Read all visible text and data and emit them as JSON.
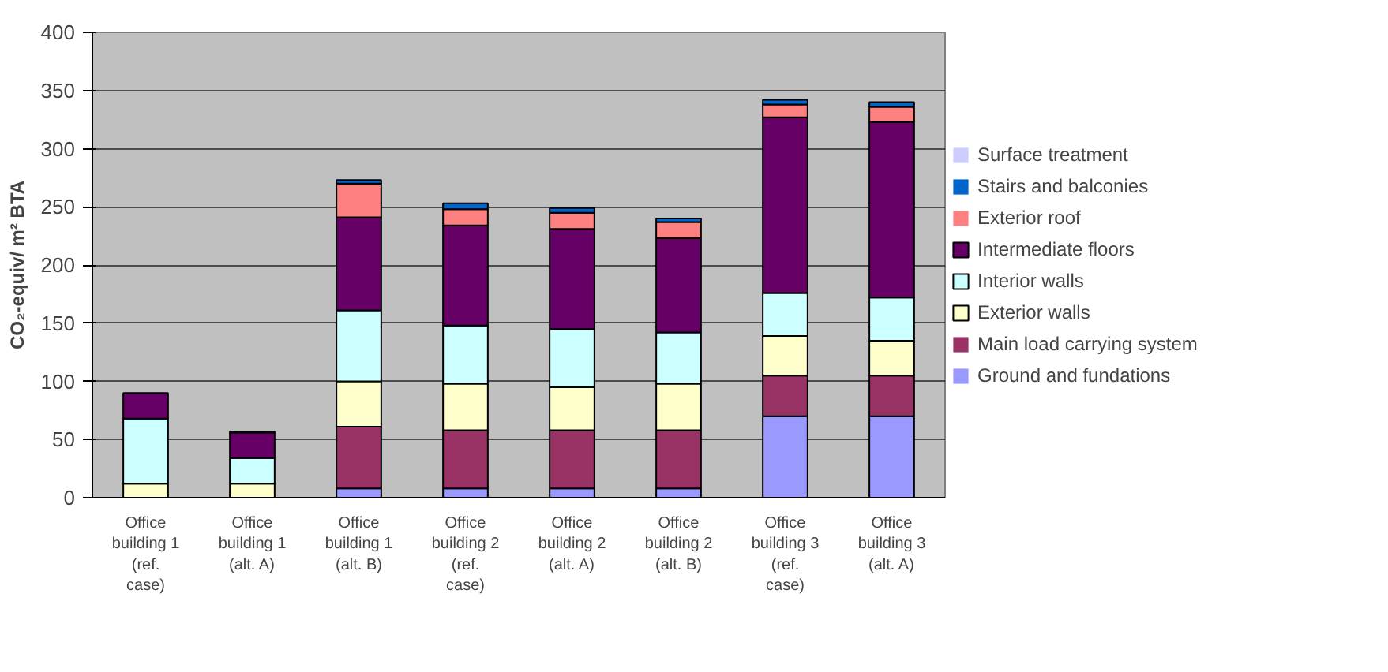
{
  "chart_data": {
    "type": "bar",
    "stacked": true,
    "ylabel": "CO₂-equiv/ m² BTA",
    "categories": [
      "Office building 1 (ref. case)",
      "Office building 1 (alt. A)",
      "Office building 1 (alt. B)",
      "Office building 2 (ref. case)",
      "Office building 2 (alt. A)",
      "Office building 2 (alt. B)",
      "Office building 3 (ref. case)",
      "Office building 3 (alt. A)"
    ],
    "series": [
      {
        "name": "Ground and fundations",
        "color": "#9999ff",
        "values": [
          0,
          0,
          8,
          8,
          8,
          8,
          70,
          70
        ]
      },
      {
        "name": "Main load carrying system",
        "color": "#993366",
        "values": [
          0,
          0,
          53,
          50,
          50,
          50,
          35,
          35
        ]
      },
      {
        "name": "Exterior walls",
        "color": "#ffffcc",
        "values": [
          12,
          12,
          39,
          40,
          37,
          40,
          34,
          30
        ]
      },
      {
        "name": "Interior walls",
        "color": "#ccffff",
        "values": [
          56,
          22,
          61,
          50,
          50,
          44,
          37,
          37
        ]
      },
      {
        "name": "Intermediate floors",
        "color": "#660066",
        "values": [
          22,
          22,
          80,
          86,
          86,
          81,
          151,
          151
        ]
      },
      {
        "name": "Exterior roof",
        "color": "#ff8080",
        "values": [
          0,
          0,
          29,
          14,
          14,
          14,
          11,
          13
        ]
      },
      {
        "name": "Stairs and balconies",
        "color": "#0066cc",
        "values": [
          0,
          1,
          3,
          5,
          4,
          3,
          4,
          4
        ]
      },
      {
        "name": "Surface treatment",
        "color": "#ccccff",
        "values": [
          0,
          0,
          0,
          0,
          0,
          0,
          0,
          0
        ]
      }
    ],
    "ylim": [
      0,
      400
    ],
    "yticks": [
      0,
      50,
      100,
      150,
      200,
      250,
      300,
      350,
      400
    ],
    "grid": "y",
    "legend": "right"
  }
}
